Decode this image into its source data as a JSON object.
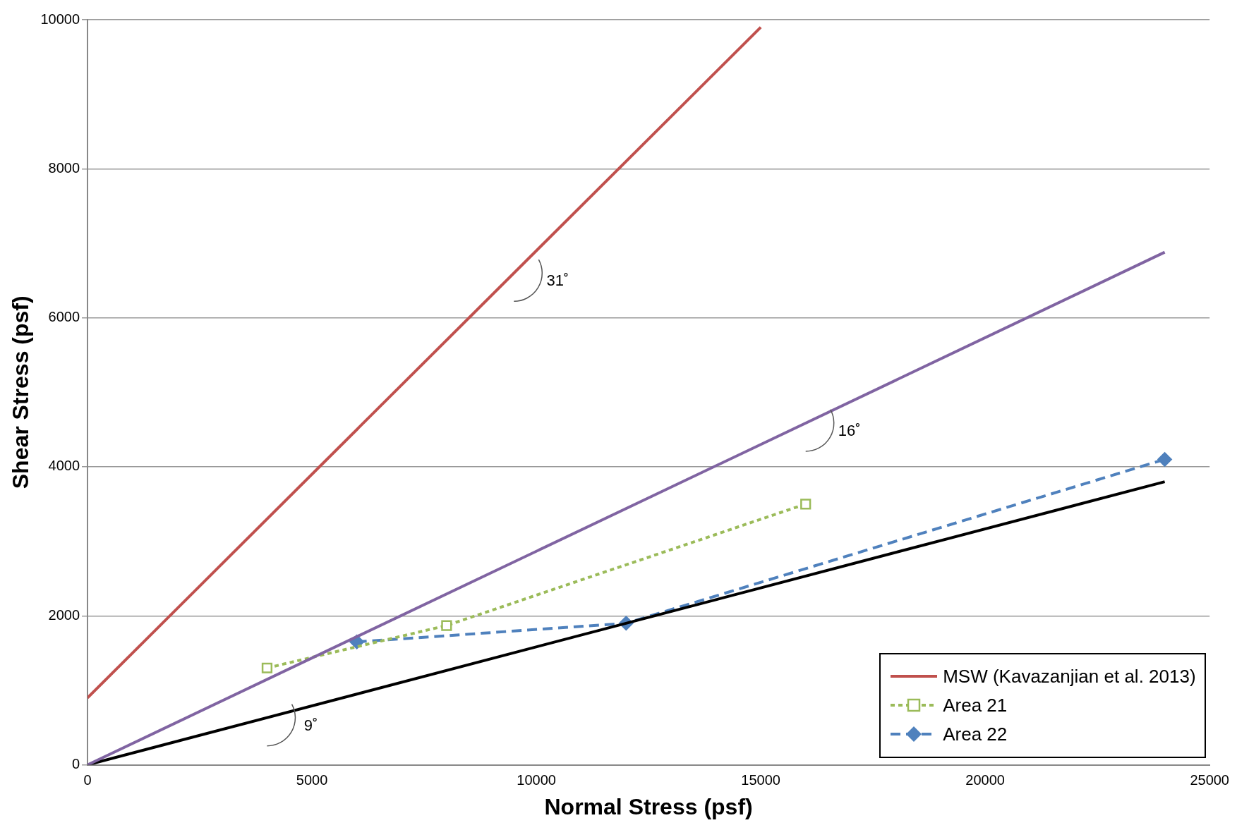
{
  "chart_data": {
    "type": "line",
    "xlabel": "Normal Stress (psf)",
    "ylabel": "Shear Stress (psf)",
    "xlim": [
      0,
      25000
    ],
    "xticks": [
      0,
      5000,
      10000,
      15000,
      20000,
      25000
    ],
    "ylim": [
      0,
      10000
    ],
    "yticks": [
      0,
      2000,
      4000,
      6000,
      8000,
      10000
    ],
    "grid": "y",
    "legend": "bottom right",
    "series": [
      {
        "name": "MSW (Kavazanjian et al. 2013)",
        "color": "#c0504d",
        "x": [
          0,
          15000
        ],
        "values": [
          900,
          9900
        ],
        "marker": "none",
        "line_style": "solid"
      },
      {
        "color": "#8064a2",
        "x": [
          0,
          24000
        ],
        "values": [
          0,
          6880
        ],
        "marker": "none",
        "line_style": "solid"
      },
      {
        "color": "#000000",
        "x": [
          0,
          24000
        ],
        "values": [
          0,
          3800
        ],
        "marker": "none",
        "line_style": "solid"
      },
      {
        "name": "Area 21",
        "color": "#9bbb59",
        "x": [
          4000,
          8000,
          16000
        ],
        "values": [
          1300,
          1870,
          3500
        ],
        "marker": "square",
        "line_style": "dotted"
      },
      {
        "name": "Area 22",
        "color": "#4f81bd",
        "x": [
          6000,
          12000,
          24000
        ],
        "values": [
          1650,
          1900,
          4100
        ],
        "marker": "diamond",
        "line_style": "dashed"
      }
    ],
    "annotations": [
      {
        "text": "31˚",
        "x": 9500,
        "y": 6600
      },
      {
        "text": "16˚",
        "x": 16000,
        "y": 4587
      },
      {
        "text": "9˚",
        "x": 4000,
        "y": 633
      }
    ]
  }
}
